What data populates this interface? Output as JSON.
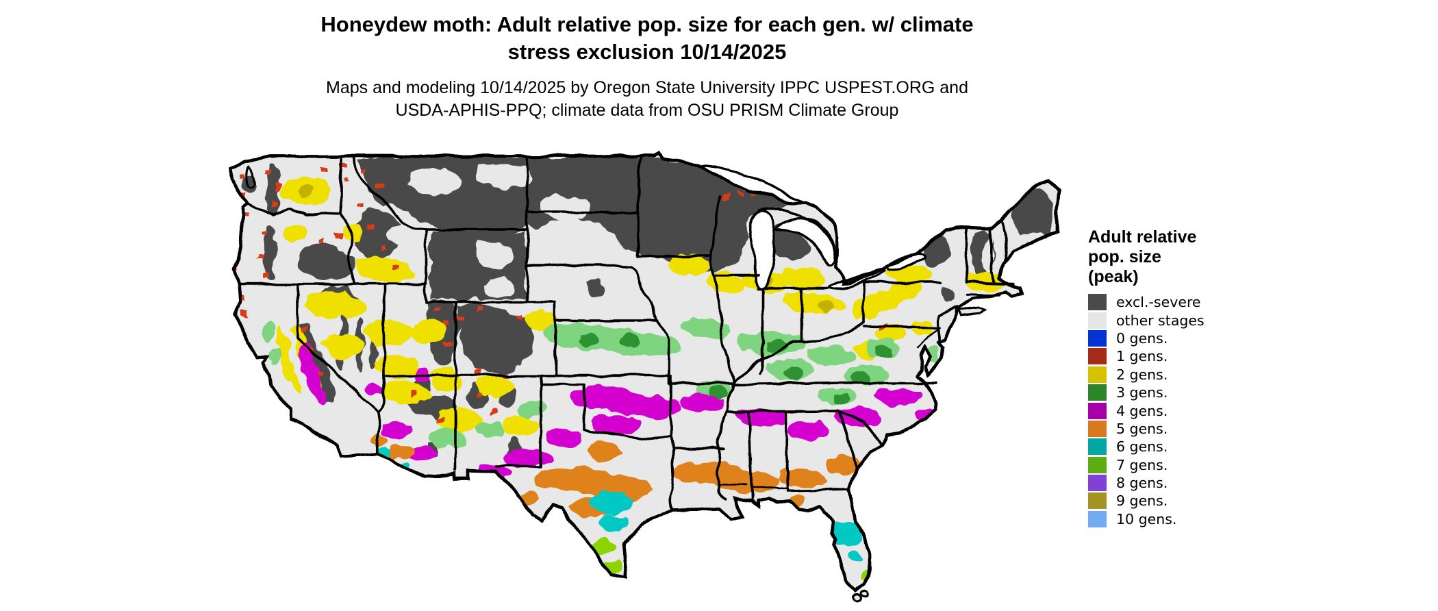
{
  "title": {
    "line1": "Honeydew moth: Adult relative pop. size for each gen. w/ climate",
    "line2": "stress exclusion 10/14/2025"
  },
  "subtitle": {
    "line1": "Maps and modeling 10/14/2025 by Oregon State University IPPC USPEST.ORG and",
    "line2": "USDA-APHIS-PPQ; climate data from OSU PRISM Climate Group"
  },
  "legend": {
    "title_lines": [
      "Adult relative",
      "pop. size",
      "(peak)"
    ],
    "items": [
      {
        "label": "excl.-severe",
        "color": "#4a4a4a"
      },
      {
        "label": "other stages",
        "color": "#e6e6e6"
      },
      {
        "label": "0 gens.",
        "color": "#0433d4"
      },
      {
        "label": "1 gens.",
        "color": "#a62a18"
      },
      {
        "label": "2 gens.",
        "color": "#d5c300"
      },
      {
        "label": "3 gens.",
        "color": "#2a8526"
      },
      {
        "label": "4 gens.",
        "color": "#a700ab"
      },
      {
        "label": "5 gens.",
        "color": "#d9781c"
      },
      {
        "label": "6 gens.",
        "color": "#00a7a3"
      },
      {
        "label": "7 gens.",
        "color": "#5bae10"
      },
      {
        "label": "8 gens.",
        "color": "#8140d6"
      },
      {
        "label": "9 gens.",
        "color": "#a29323"
      },
      {
        "label": "10 gens.",
        "color": "#72abef"
      }
    ]
  },
  "map": {
    "region": "Contiguous United States",
    "date_shown": "10/14/2025",
    "band_colors": {
      "excluded_severe": "#4a4a4a",
      "other_stages": "#e8e8e8",
      "1_gens": "#d63c12",
      "2_gens": "#efe000",
      "3_gens": "#2f9230",
      "4_gens": "#d400cf",
      "5_gens": "#e0821e",
      "6_gens": "#00c9c4",
      "7_gens": "#8cd400"
    }
  }
}
